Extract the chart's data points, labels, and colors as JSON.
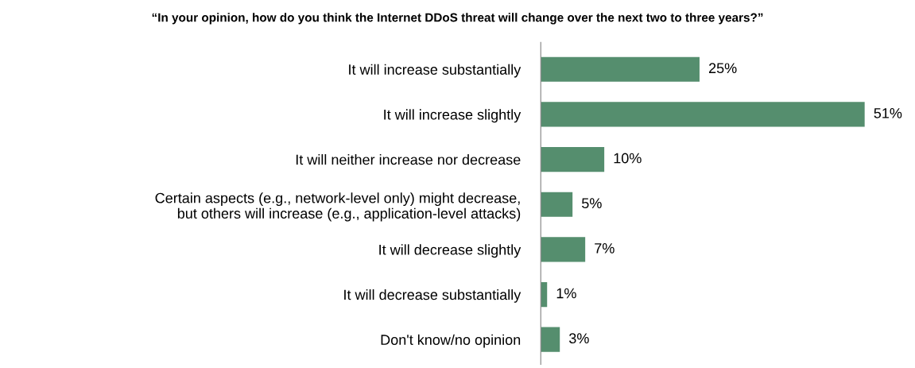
{
  "chart_data": {
    "type": "bar",
    "orientation": "horizontal",
    "title": "“In your opinion, how do you think the Internet DDoS threat will change over the next two to three years?”",
    "categories": [
      "It will increase substantially",
      "It will increase slightly",
      "It will neither increase nor decrease",
      "Certain aspects (e.g., network-level only) might decrease,\nbut others will increase (e.g., application-level attacks)",
      "It will decrease slightly",
      "It will decrease substantially",
      "Don't know/no opinion"
    ],
    "values": [
      25,
      51,
      10,
      5,
      7,
      1,
      3
    ],
    "value_labels": [
      "25%",
      "51%",
      "10%",
      "5%",
      "7%",
      "1%",
      "3%"
    ],
    "color": "#558e6e",
    "grid": false,
    "legend": false
  }
}
